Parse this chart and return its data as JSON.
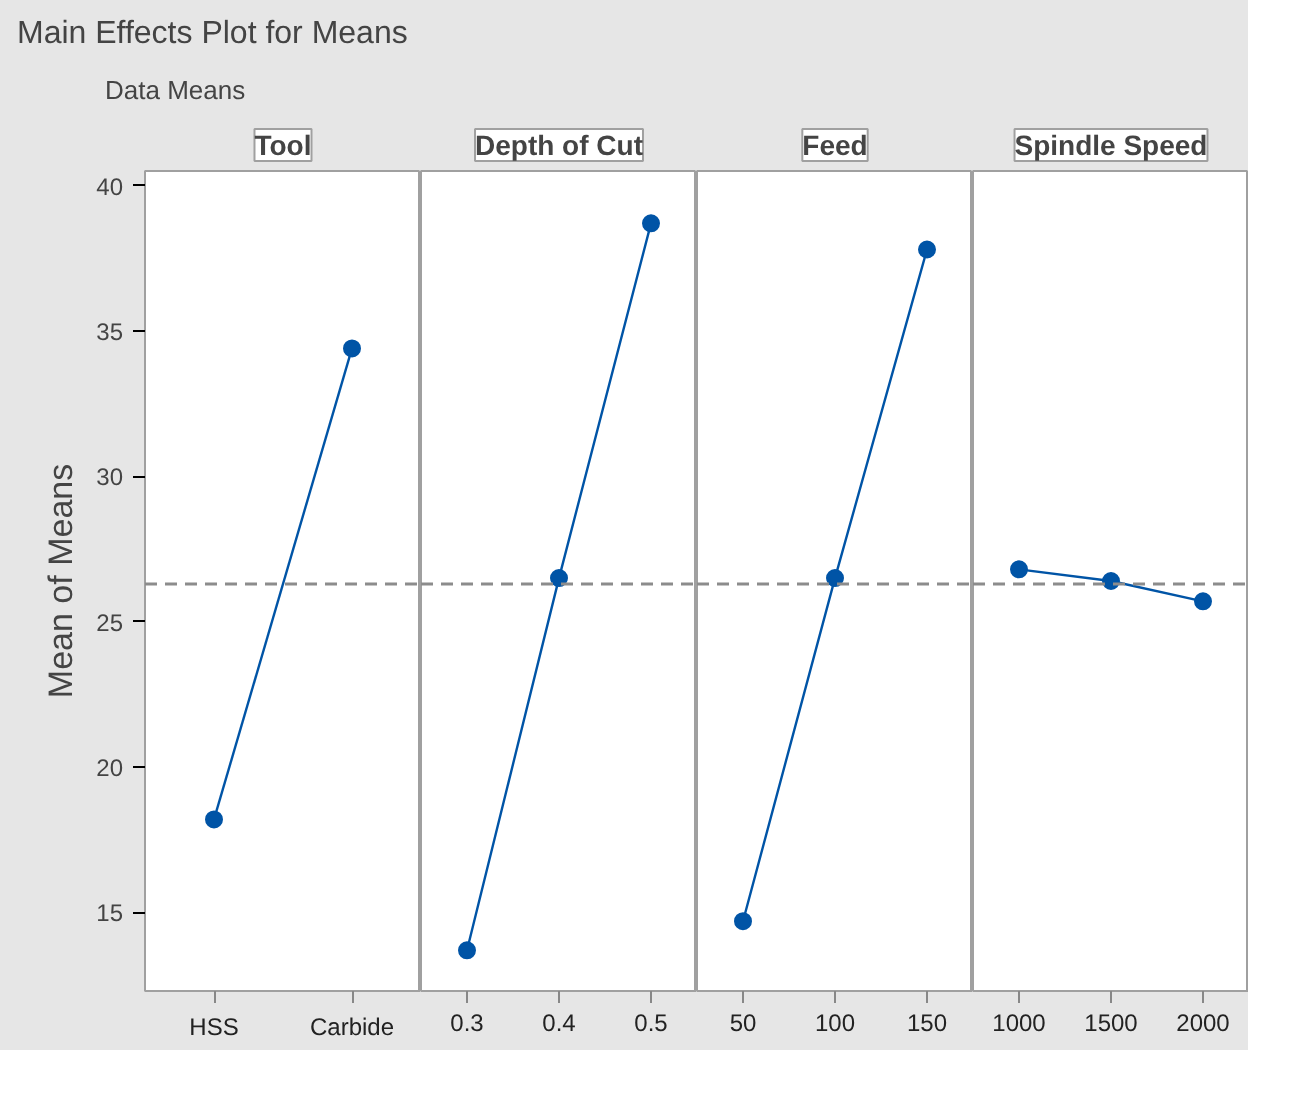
{
  "chart_data": [
    {
      "type": "line",
      "title": "Main Effects Plot for Means",
      "subtitle": "Data Means",
      "xlabel": "Tool",
      "ylabel": "Mean of Means",
      "categories": [
        "HSS",
        "Carbide"
      ],
      "series": [
        {
          "color": "#0054a6",
          "values": [
            18.2,
            34.4
          ]
        }
      ],
      "ylim": [
        12.3,
        40.5
      ],
      "yticks": [
        15,
        20,
        25,
        30,
        35,
        40
      ],
      "marker": "circle",
      "line_style": "solid",
      "grid": false,
      "ref_lines": [
        {
          "axis": "y",
          "value": 26.3,
          "color": "#8c8c8c",
          "line_style": "dashed"
        }
      ]
    },
    {
      "type": "line",
      "xlabel": "Depth of Cut",
      "categories": [
        "0.3",
        "0.4",
        "0.5"
      ],
      "series": [
        {
          "color": "#0054a6",
          "values": [
            13.7,
            26.5,
            38.7
          ]
        }
      ],
      "ylim": [
        12.3,
        40.5
      ],
      "tick_labels": "x",
      "marker": "circle",
      "line_style": "solid",
      "grid": false,
      "ref_lines": [
        {
          "axis": "y",
          "value": 26.3,
          "color": "#8c8c8c",
          "line_style": "dashed"
        }
      ]
    },
    {
      "type": "line",
      "xlabel": "Feed",
      "categories": [
        "50",
        "100",
        "150"
      ],
      "series": [
        {
          "color": "#0054a6",
          "values": [
            14.7,
            26.5,
            37.8
          ]
        }
      ],
      "ylim": [
        12.3,
        40.5
      ],
      "tick_labels": "x",
      "marker": "circle",
      "line_style": "solid",
      "grid": false,
      "ref_lines": [
        {
          "axis": "y",
          "value": 26.3,
          "color": "#8c8c8c",
          "line_style": "dashed"
        }
      ]
    },
    {
      "type": "line",
      "xlabel": "Spindle Speed",
      "categories": [
        "1000",
        "1500",
        "2000"
      ],
      "series": [
        {
          "color": "#0054a6",
          "values": [
            26.8,
            26.4,
            25.7
          ]
        }
      ],
      "ylim": [
        12.3,
        40.5
      ],
      "tick_labels": "x",
      "marker": "circle",
      "line_style": "solid",
      "grid": false,
      "ref_lines": [
        {
          "axis": "y",
          "value": 26.3,
          "color": "#8c8c8c",
          "line_style": "dashed"
        }
      ]
    }
  ]
}
